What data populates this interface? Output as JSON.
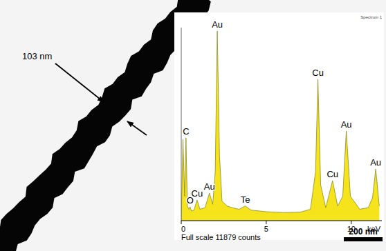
{
  "micrograph": {
    "width_label": "103 nm",
    "scale_bar_label": "200 nm"
  },
  "chart_data": {
    "type": "area",
    "title": "Spectrum 1",
    "x_label": "keV",
    "full_scale_label": "Full scale 11879 counts",
    "color": "#f5e41c",
    "x": [
      0,
      0.1,
      0.2,
      0.28,
      0.36,
      0.45,
      0.52,
      0.6,
      0.75,
      0.93,
      1.1,
      1.4,
      1.66,
      1.85,
      2.0,
      2.12,
      2.25,
      2.4,
      2.7,
      3.0,
      3.4,
      3.77,
      4.1,
      5,
      6,
      7,
      7.6,
      7.9,
      8.04,
      8.2,
      8.5,
      8.9,
      9.2,
      9.5,
      9.71,
      9.95,
      10.5,
      11.0,
      11.25,
      11.44,
      11.65
    ],
    "values": [
      0,
      5000,
      1500,
      5100,
      900,
      700,
      850,
      600,
      650,
      1270,
      700,
      800,
      1700,
      1000,
      3000,
      11670,
      4000,
      1200,
      900,
      800,
      700,
      900,
      650,
      550,
      500,
      520,
      700,
      3000,
      8700,
      2200,
      800,
      2460,
      900,
      1500,
      5515,
      1500,
      700,
      800,
      1400,
      3180,
      900
    ],
    "xlim": [
      0,
      11.8
    ],
    "xticks": [
      0,
      5,
      10
    ],
    "ylim": [
      0,
      11879
    ],
    "tick_labels": "x",
    "annotations": [
      {
        "text": "C",
        "x": 0.28,
        "y": 5100
      },
      {
        "text": "O",
        "x": 0.52,
        "y": 850
      },
      {
        "text": "Cu",
        "x": 0.93,
        "y": 1270
      },
      {
        "text": "Au",
        "x": 1.66,
        "y": 1700
      },
      {
        "text": "Au",
        "x": 2.12,
        "y": 11670
      },
      {
        "text": "Te",
        "x": 3.77,
        "y": 900
      },
      {
        "text": "Cu",
        "x": 8.04,
        "y": 8700
      },
      {
        "text": "Cu",
        "x": 8.9,
        "y": 2460
      },
      {
        "text": "Au",
        "x": 9.71,
        "y": 5515
      },
      {
        "text": "Au",
        "x": 11.44,
        "y": 3180
      }
    ]
  }
}
